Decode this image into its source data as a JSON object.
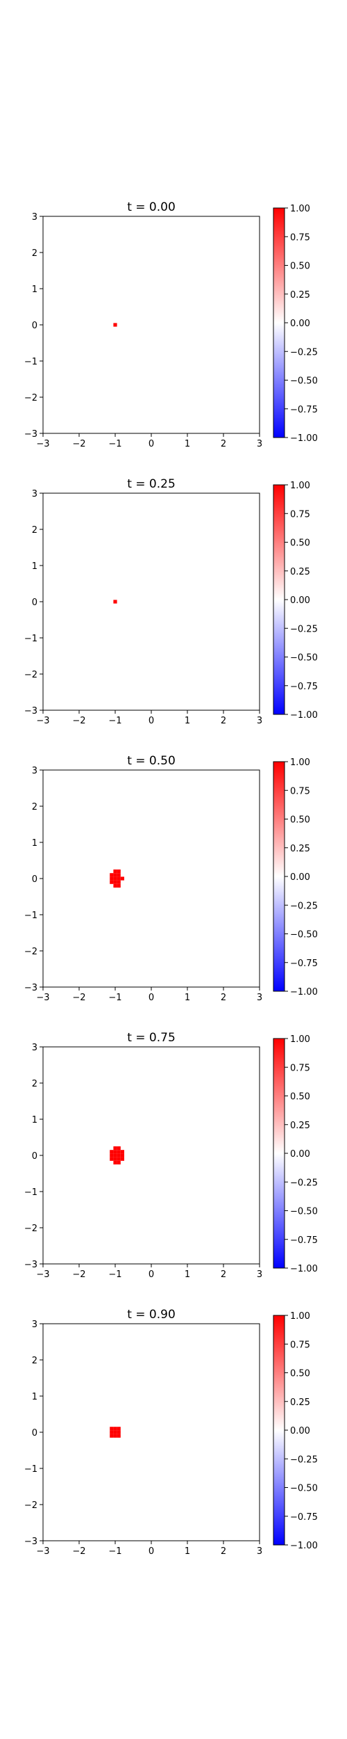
{
  "colors": {
    "negative": "#0000ff",
    "zero": "#ffffff",
    "positive": "#ff0000",
    "axes": "#000000",
    "background": "#ffffff"
  },
  "colormap": "bwr",
  "chart_data": [
    {
      "type": "heatmap",
      "title": "t = 0.00",
      "xlabel": "",
      "ylabel": "",
      "xlim": [
        -3,
        3
      ],
      "ylim": [
        -3,
        3
      ],
      "xticks": [
        -3,
        -2,
        -1,
        0,
        1,
        2,
        3
      ],
      "yticks": [
        -3,
        -2,
        -1,
        0,
        1,
        2,
        3
      ],
      "colorbar": {
        "range": [
          -1,
          1
        ],
        "ticks": [
          "1.00",
          "0.75",
          "0.50",
          "0.25",
          "0.00",
          "−0.25",
          "−0.50",
          "−0.75",
          "−1.00"
        ]
      },
      "cells": [
        {
          "x": -1.0,
          "y": 0.0,
          "value": 1.0
        }
      ]
    },
    {
      "type": "heatmap",
      "title": "t = 0.25",
      "xlabel": "",
      "ylabel": "",
      "xlim": [
        -3,
        3
      ],
      "ylim": [
        -3,
        3
      ],
      "xticks": [
        -3,
        -2,
        -1,
        0,
        1,
        2,
        3
      ],
      "yticks": [
        -3,
        -2,
        -1,
        0,
        1,
        2,
        3
      ],
      "colorbar": {
        "range": [
          -1,
          1
        ],
        "ticks": [
          "1.00",
          "0.75",
          "0.50",
          "0.25",
          "0.00",
          "−0.25",
          "−0.50",
          "−0.75",
          "−1.00"
        ]
      },
      "cells": [
        {
          "x": -1.0,
          "y": 0.0,
          "value": 1.0
        }
      ]
    },
    {
      "type": "heatmap",
      "title": "t = 0.50",
      "xlabel": "",
      "ylabel": "",
      "xlim": [
        -3,
        3
      ],
      "ylim": [
        -3,
        3
      ],
      "xticks": [
        -3,
        -2,
        -1,
        0,
        1,
        2,
        3
      ],
      "yticks": [
        -3,
        -2,
        -1,
        0,
        1,
        2,
        3
      ],
      "colorbar": {
        "range": [
          -1,
          1
        ],
        "ticks": [
          "1.00",
          "0.75",
          "0.50",
          "0.25",
          "0.00",
          "−0.25",
          "−0.50",
          "−0.75",
          "−1.00"
        ]
      },
      "cells": [
        {
          "x": -1.0,
          "y": 0.2,
          "value": 1.0
        },
        {
          "x": -0.9,
          "y": 0.2,
          "value": 1.0
        },
        {
          "x": -1.1,
          "y": 0.1,
          "value": 1.0
        },
        {
          "x": -1.0,
          "y": 0.1,
          "value": 1.0
        },
        {
          "x": -0.9,
          "y": 0.1,
          "value": 1.0
        },
        {
          "x": -1.1,
          "y": 0.0,
          "value": 1.0
        },
        {
          "x": -1.0,
          "y": 0.0,
          "value": 1.0
        },
        {
          "x": -0.9,
          "y": 0.0,
          "value": 1.0
        },
        {
          "x": -0.8,
          "y": 0.0,
          "value": 1.0
        },
        {
          "x": -1.1,
          "y": -0.1,
          "value": 1.0
        },
        {
          "x": -1.0,
          "y": -0.1,
          "value": 1.0
        },
        {
          "x": -0.9,
          "y": -0.1,
          "value": 1.0
        },
        {
          "x": -1.0,
          "y": -0.2,
          "value": 1.0
        },
        {
          "x": -0.9,
          "y": -0.2,
          "value": 1.0
        }
      ]
    },
    {
      "type": "heatmap",
      "title": "t = 0.75",
      "xlabel": "",
      "ylabel": "",
      "xlim": [
        -3,
        3
      ],
      "ylim": [
        -3,
        3
      ],
      "xticks": [
        -3,
        -2,
        -1,
        0,
        1,
        2,
        3
      ],
      "yticks": [
        -3,
        -2,
        -1,
        0,
        1,
        2,
        3
      ],
      "colorbar": {
        "range": [
          -1,
          1
        ],
        "ticks": [
          "1.00",
          "0.75",
          "0.50",
          "0.25",
          "0.00",
          "−0.25",
          "−0.50",
          "−0.75",
          "−1.00"
        ]
      },
      "cells": [
        {
          "x": -1.0,
          "y": 0.2,
          "value": 1.0
        },
        {
          "x": -0.9,
          "y": 0.2,
          "value": 1.0
        },
        {
          "x": -1.1,
          "y": 0.1,
          "value": 1.0
        },
        {
          "x": -1.0,
          "y": 0.1,
          "value": 1.0
        },
        {
          "x": -0.9,
          "y": 0.1,
          "value": 1.0
        },
        {
          "x": -0.8,
          "y": 0.1,
          "value": 1.0
        },
        {
          "x": -1.1,
          "y": 0.0,
          "value": 1.0
        },
        {
          "x": -1.0,
          "y": 0.0,
          "value": 1.0
        },
        {
          "x": -0.9,
          "y": 0.0,
          "value": 1.0
        },
        {
          "x": -0.8,
          "y": 0.0,
          "value": 1.0
        },
        {
          "x": -1.1,
          "y": -0.1,
          "value": 1.0
        },
        {
          "x": -1.0,
          "y": -0.1,
          "value": 1.0
        },
        {
          "x": -0.9,
          "y": -0.1,
          "value": 1.0
        },
        {
          "x": -0.8,
          "y": -0.1,
          "value": 1.0
        },
        {
          "x": -1.0,
          "y": -0.2,
          "value": 1.0
        },
        {
          "x": -0.9,
          "y": -0.2,
          "value": 1.0
        }
      ]
    },
    {
      "type": "heatmap",
      "title": "t = 0.90",
      "xlabel": "",
      "ylabel": "",
      "xlim": [
        -3,
        3
      ],
      "ylim": [
        -3,
        3
      ],
      "xticks": [
        -3,
        -2,
        -1,
        0,
        1,
        2,
        3
      ],
      "yticks": [
        -3,
        -2,
        -1,
        0,
        1,
        2,
        3
      ],
      "colorbar": {
        "range": [
          -1,
          1
        ],
        "ticks": [
          "1.00",
          "0.75",
          "0.50",
          "0.25",
          "0.00",
          "−0.25",
          "−0.50",
          "−0.75",
          "−1.00"
        ]
      },
      "cells": [
        {
          "x": -1.1,
          "y": 0.1,
          "value": 1.0
        },
        {
          "x": -1.0,
          "y": 0.1,
          "value": 1.0
        },
        {
          "x": -0.9,
          "y": 0.1,
          "value": 1.0
        },
        {
          "x": -1.1,
          "y": 0.0,
          "value": 1.0
        },
        {
          "x": -1.0,
          "y": 0.0,
          "value": 1.0
        },
        {
          "x": -0.9,
          "y": 0.0,
          "value": 1.0
        },
        {
          "x": -1.1,
          "y": -0.1,
          "value": 1.0
        },
        {
          "x": -1.0,
          "y": -0.1,
          "value": 1.0
        },
        {
          "x": -0.9,
          "y": -0.1,
          "value": 1.0
        }
      ]
    }
  ]
}
